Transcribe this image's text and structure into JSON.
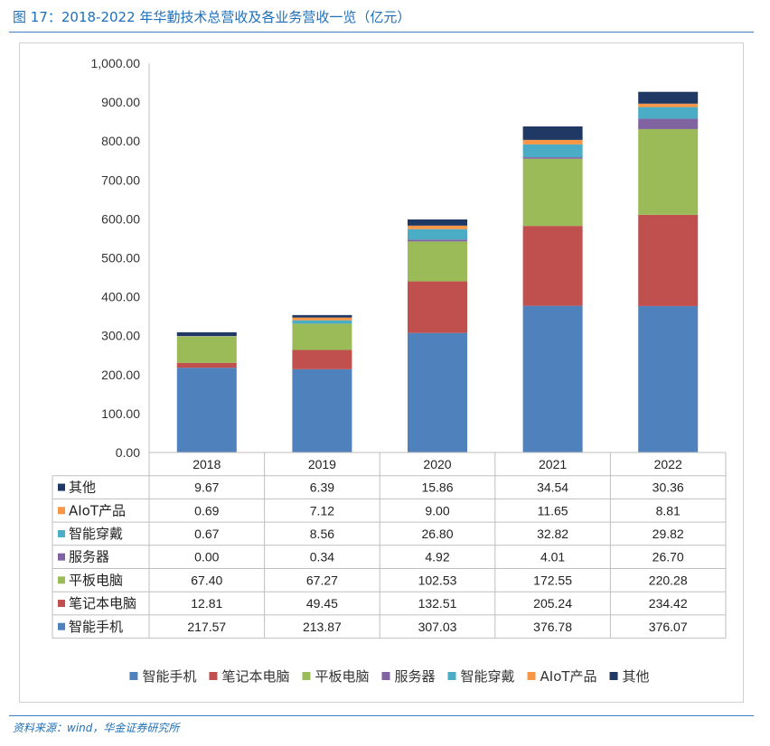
{
  "title": "图 17：2018-2022 年华勤技术总营收及各业务营收一览（亿元）",
  "source": "资料来源：wind，华金证券研究所",
  "chart_data": {
    "type": "bar",
    "stacked": true,
    "ylim": [
      0,
      1000
    ],
    "yticks": [
      "0.00",
      "100.00",
      "200.00",
      "300.00",
      "400.00",
      "500.00",
      "600.00",
      "700.00",
      "800.00",
      "900.00",
      "1,000.00"
    ],
    "categories": [
      "2018",
      "2019",
      "2020",
      "2021",
      "2022"
    ],
    "legend_position": "bottom",
    "series": [
      {
        "name": "智能手机",
        "color": "#4f81bd",
        "values": [
          217.57,
          213.87,
          307.03,
          376.78,
          376.07
        ],
        "labels": [
          "217.57",
          "213.87",
          "307.03",
          "376.78",
          "376.07"
        ]
      },
      {
        "name": "笔记本电脑",
        "color": "#c0504d",
        "values": [
          12.81,
          49.45,
          132.51,
          205.24,
          234.42
        ],
        "labels": [
          "12.81",
          "49.45",
          "132.51",
          "205.24",
          "234.42"
        ]
      },
      {
        "name": "平板电脑",
        "color": "#9bbb59",
        "values": [
          67.4,
          67.27,
          102.53,
          172.55,
          220.28
        ],
        "labels": [
          "67.40",
          "67.27",
          "102.53",
          "172.55",
          "220.28"
        ]
      },
      {
        "name": "服务器",
        "color": "#8064a2",
        "values": [
          0.0,
          0.34,
          4.92,
          4.01,
          26.7
        ],
        "labels": [
          "0.00",
          "0.34",
          "4.92",
          "4.01",
          "26.70"
        ]
      },
      {
        "name": "智能穿戴",
        "color": "#4bacc6",
        "values": [
          0.67,
          8.56,
          26.8,
          32.82,
          29.82
        ],
        "labels": [
          "0.67",
          "8.56",
          "26.80",
          "32.82",
          "29.82"
        ]
      },
      {
        "name": "AIoT产品",
        "color": "#f79646",
        "values": [
          0.69,
          7.12,
          9.0,
          11.65,
          8.81
        ],
        "labels": [
          "0.69",
          "7.12",
          "9.00",
          "11.65",
          "8.81"
        ]
      },
      {
        "name": "其他",
        "color": "#1f3864",
        "values": [
          9.67,
          6.39,
          15.86,
          34.54,
          30.36
        ],
        "labels": [
          "9.67",
          "6.39",
          "15.86",
          "34.54",
          "30.36"
        ]
      }
    ]
  }
}
